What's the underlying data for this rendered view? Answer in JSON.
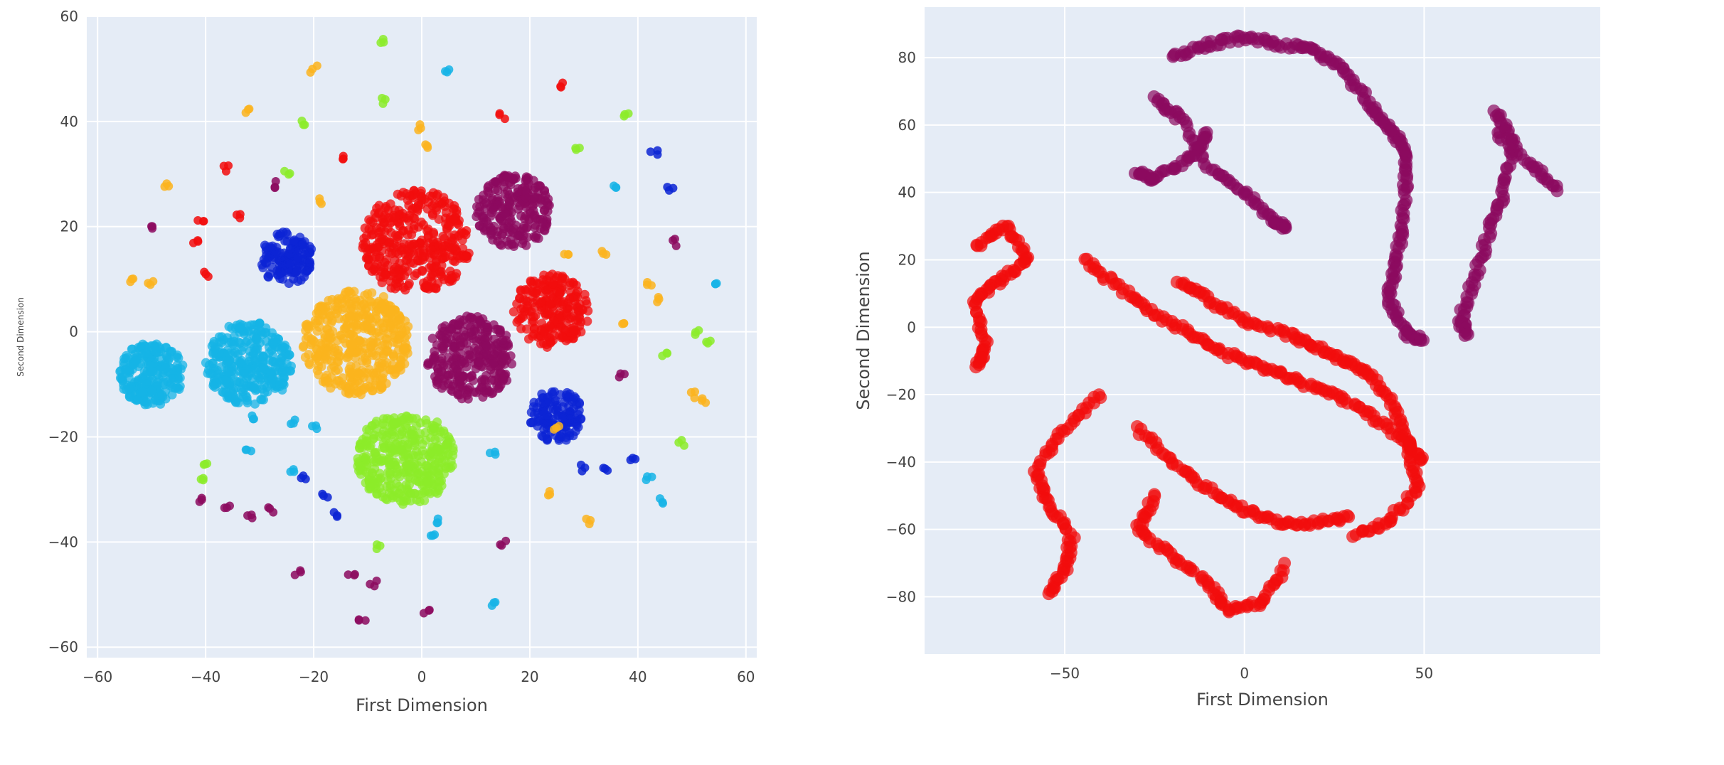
{
  "chart_data": [
    {
      "type": "scatter",
      "xlabel": "First Dimension",
      "ylabel": "Second Dimension",
      "xlim": [
        -62,
        62
      ],
      "ylim": [
        -62,
        60
      ],
      "xticks": [
        -60,
        -40,
        -20,
        0,
        20,
        40,
        60
      ],
      "yticks": [
        -60,
        -40,
        -20,
        0,
        20,
        40,
        60
      ],
      "grid": true,
      "colors": {
        "cyan": "#16b4e6",
        "blue": "#0c24d4",
        "orange": "#fbb41e",
        "red": "#f20d0d",
        "purple": "#8c0a5f",
        "green": "#8cec2a"
      },
      "clusters": [
        {
          "color": "cyan",
          "cx": -50,
          "cy": -8,
          "r": 6,
          "n": 230
        },
        {
          "color": "cyan",
          "cx": -32,
          "cy": -6,
          "r": 8,
          "n": 320
        },
        {
          "color": "blue",
          "cx": -25,
          "cy": 14,
          "r": 5,
          "n": 140
        },
        {
          "color": "orange",
          "cx": -12,
          "cy": -2,
          "r": 10,
          "n": 420
        },
        {
          "color": "red",
          "cx": -1,
          "cy": 17,
          "r": 10,
          "n": 380
        },
        {
          "color": "purple",
          "cx": 17,
          "cy": 23,
          "r": 7,
          "n": 230
        },
        {
          "color": "purple",
          "cx": 9,
          "cy": -5,
          "r": 8,
          "n": 300
        },
        {
          "color": "red",
          "cx": 24,
          "cy": 4,
          "r": 7,
          "n": 230
        },
        {
          "color": "green",
          "cx": -3,
          "cy": -24,
          "r": 9,
          "n": 360
        },
        {
          "color": "blue",
          "cx": 25,
          "cy": -16,
          "r": 5,
          "n": 130
        }
      ],
      "outliers": [
        {
          "color": "green",
          "x": -7,
          "y": 55
        },
        {
          "color": "cyan",
          "x": 5,
          "y": 50
        },
        {
          "color": "orange",
          "x": -20,
          "y": 50
        },
        {
          "color": "red",
          "x": 26,
          "y": 47
        },
        {
          "color": "green",
          "x": -7,
          "y": 44
        },
        {
          "color": "orange",
          "x": -32,
          "y": 42
        },
        {
          "color": "red",
          "x": 15,
          "y": 41
        },
        {
          "color": "green",
          "x": 38,
          "y": 41
        },
        {
          "color": "green",
          "x": -22,
          "y": 40
        },
        {
          "color": "orange",
          "x": 0,
          "y": 39
        },
        {
          "color": "orange",
          "x": 1,
          "y": 35
        },
        {
          "color": "blue",
          "x": 43,
          "y": 34
        },
        {
          "color": "green",
          "x": 29,
          "y": 35
        },
        {
          "color": "red",
          "x": -14,
          "y": 33
        },
        {
          "color": "red",
          "x": -36,
          "y": 31
        },
        {
          "color": "green",
          "x": -25,
          "y": 30
        },
        {
          "color": "purple",
          "x": -27,
          "y": 28
        },
        {
          "color": "orange",
          "x": -47,
          "y": 28
        },
        {
          "color": "cyan",
          "x": 36,
          "y": 28
        },
        {
          "color": "blue",
          "x": 46,
          "y": 27
        },
        {
          "color": "orange",
          "x": -19,
          "y": 25
        },
        {
          "color": "red",
          "x": -34,
          "y": 22
        },
        {
          "color": "red",
          "x": -41,
          "y": 21
        },
        {
          "color": "purple",
          "x": -50,
          "y": 20
        },
        {
          "color": "red",
          "x": -42,
          "y": 17
        },
        {
          "color": "orange",
          "x": 27,
          "y": 15
        },
        {
          "color": "orange",
          "x": 34,
          "y": 15
        },
        {
          "color": "purple",
          "x": 47,
          "y": 17
        },
        {
          "color": "red",
          "x": -40,
          "y": 11
        },
        {
          "color": "orange",
          "x": -54,
          "y": 10
        },
        {
          "color": "orange",
          "x": -50,
          "y": 9
        },
        {
          "color": "orange",
          "x": 42,
          "y": 9
        },
        {
          "color": "cyan",
          "x": 55,
          "y": 9
        },
        {
          "color": "orange",
          "x": 44,
          "y": 6
        },
        {
          "color": "orange",
          "x": 37,
          "y": 1
        },
        {
          "color": "green",
          "x": 51,
          "y": 0
        },
        {
          "color": "green",
          "x": 53,
          "y": -2
        },
        {
          "color": "green",
          "x": 45,
          "y": -4
        },
        {
          "color": "purple",
          "x": 37,
          "y": -8
        },
        {
          "color": "orange",
          "x": 50,
          "y": -12
        },
        {
          "color": "orange",
          "x": 52,
          "y": -13
        },
        {
          "color": "cyan",
          "x": -31,
          "y": -16
        },
        {
          "color": "cyan",
          "x": -24,
          "y": -17
        },
        {
          "color": "cyan",
          "x": -20,
          "y": -18
        },
        {
          "color": "orange",
          "x": 25,
          "y": -18
        },
        {
          "color": "green",
          "x": 48,
          "y": -21
        },
        {
          "color": "cyan",
          "x": -32,
          "y": -23
        },
        {
          "color": "cyan",
          "x": -24,
          "y": -26
        },
        {
          "color": "blue",
          "x": -22,
          "y": -28
        },
        {
          "color": "green",
          "x": -40,
          "y": -25
        },
        {
          "color": "cyan",
          "x": 13,
          "y": -23
        },
        {
          "color": "blue",
          "x": 30,
          "y": -26
        },
        {
          "color": "blue",
          "x": 34,
          "y": -26
        },
        {
          "color": "blue",
          "x": 39,
          "y": -24
        },
        {
          "color": "cyan",
          "x": 42,
          "y": -28
        },
        {
          "color": "green",
          "x": -41,
          "y": -28
        },
        {
          "color": "purple",
          "x": -41,
          "y": -32
        },
        {
          "color": "blue",
          "x": -18,
          "y": -31
        },
        {
          "color": "blue",
          "x": -16,
          "y": -35
        },
        {
          "color": "cyan",
          "x": 44,
          "y": -32
        },
        {
          "color": "purple",
          "x": -32,
          "y": -35
        },
        {
          "color": "purple",
          "x": -28,
          "y": -34
        },
        {
          "color": "cyan",
          "x": 3,
          "y": -36
        },
        {
          "color": "orange",
          "x": 31,
          "y": -36
        },
        {
          "color": "cyan",
          "x": 2,
          "y": -39
        },
        {
          "color": "purple",
          "x": 15,
          "y": -40
        },
        {
          "color": "green",
          "x": -8,
          "y": -41
        },
        {
          "color": "purple",
          "x": -23,
          "y": -46
        },
        {
          "color": "purple",
          "x": -13,
          "y": -46
        },
        {
          "color": "purple",
          "x": -9,
          "y": -48
        },
        {
          "color": "cyan",
          "x": 13,
          "y": -52
        },
        {
          "color": "purple",
          "x": 1,
          "y": -53
        },
        {
          "color": "purple",
          "x": -11,
          "y": -55
        },
        {
          "color": "orange",
          "x": 24,
          "y": -31
        },
        {
          "color": "purple",
          "x": -36,
          "y": -33
        }
      ]
    },
    {
      "type": "scatter",
      "xlabel": "First Dimension",
      "ylabel": "Second Dimension",
      "xlim": [
        -89,
        99
      ],
      "ylim": [
        -97,
        95
      ],
      "xticks": [
        -50,
        0,
        50
      ],
      "yticks": [
        -80,
        -60,
        -40,
        -20,
        0,
        20,
        40,
        60,
        80
      ],
      "grid": true,
      "colors": {
        "red": "#f20d0d",
        "purple": "#8c0a5f"
      },
      "strokes": [
        {
          "color": "purple",
          "points": [
            [
              -20,
              80
            ],
            [
              -10,
              84
            ],
            [
              0,
              86
            ],
            [
              10,
              84
            ],
            [
              20,
              82
            ],
            [
              28,
              76
            ],
            [
              35,
              66
            ],
            [
              40,
              60
            ],
            [
              44,
              54
            ],
            [
              45,
              44
            ],
            [
              44,
              30
            ],
            [
              42,
              18
            ],
            [
              40,
              8
            ],
            [
              45,
              -2
            ],
            [
              50,
              -4
            ]
          ]
        },
        {
          "color": "purple",
          "points": [
            [
              -25,
              68
            ],
            [
              -18,
              62
            ],
            [
              -10,
              48
            ],
            [
              0,
              40
            ],
            [
              8,
              32
            ],
            [
              12,
              29
            ]
          ]
        },
        {
          "color": "purple",
          "points": [
            [
              -10,
              58
            ],
            [
              -15,
              50
            ],
            [
              -25,
              44
            ],
            [
              -30,
              46
            ]
          ]
        },
        {
          "color": "purple",
          "points": [
            [
              70,
              64
            ],
            [
              75,
              55
            ],
            [
              72,
              40
            ],
            [
              68,
              28
            ],
            [
              64,
              14
            ],
            [
              60,
              2
            ],
            [
              62,
              -2
            ]
          ]
        },
        {
          "color": "purple",
          "points": [
            [
              70,
              58
            ],
            [
              80,
              48
            ],
            [
              88,
              40
            ]
          ]
        },
        {
          "color": "red",
          "points": [
            [
              -75,
              24
            ],
            [
              -66,
              30
            ],
            [
              -60,
              20
            ],
            [
              -68,
              14
            ],
            [
              -75,
              8
            ],
            [
              -72,
              -6
            ],
            [
              -75,
              -12
            ]
          ]
        },
        {
          "color": "red",
          "points": [
            [
              -45,
              20
            ],
            [
              -35,
              12
            ],
            [
              -25,
              4
            ],
            [
              -15,
              -2
            ],
            [
              -5,
              -8
            ],
            [
              5,
              -12
            ],
            [
              15,
              -16
            ],
            [
              25,
              -20
            ],
            [
              35,
              -26
            ],
            [
              45,
              -34
            ],
            [
              50,
              -40
            ]
          ]
        },
        {
          "color": "red",
          "points": [
            [
              -18,
              14
            ],
            [
              -10,
              8
            ],
            [
              0,
              2
            ],
            [
              12,
              -2
            ],
            [
              20,
              -6
            ],
            [
              28,
              -10
            ],
            [
              35,
              -14
            ],
            [
              42,
              -24
            ],
            [
              46,
              -36
            ],
            [
              48,
              -48
            ],
            [
              40,
              -58
            ],
            [
              30,
              -62
            ]
          ]
        },
        {
          "color": "red",
          "points": [
            [
              -40,
              -20
            ],
            [
              -50,
              -30
            ],
            [
              -58,
              -42
            ],
            [
              -55,
              -52
            ],
            [
              -48,
              -62
            ],
            [
              -50,
              -72
            ],
            [
              -55,
              -80
            ]
          ]
        },
        {
          "color": "red",
          "points": [
            [
              -25,
              -50
            ],
            [
              -30,
              -60
            ],
            [
              -20,
              -68
            ],
            [
              -10,
              -76
            ],
            [
              -5,
              -84
            ],
            [
              5,
              -82
            ],
            [
              12,
              -70
            ]
          ]
        },
        {
          "color": "red",
          "points": [
            [
              -30,
              -30
            ],
            [
              -20,
              -40
            ],
            [
              -10,
              -48
            ],
            [
              0,
              -54
            ],
            [
              10,
              -58
            ],
            [
              20,
              -58
            ],
            [
              30,
              -56
            ]
          ]
        }
      ]
    }
  ]
}
